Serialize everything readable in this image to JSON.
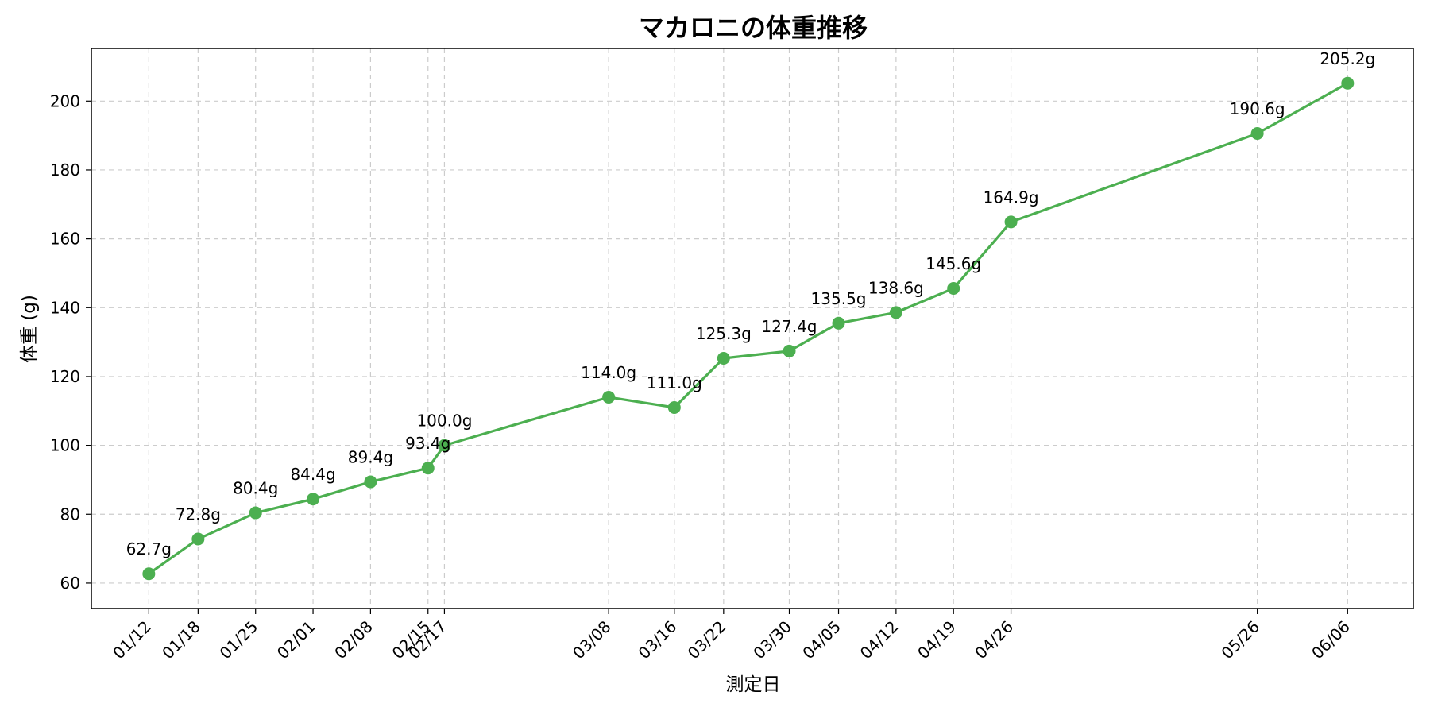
{
  "chart_data": {
    "type": "line",
    "title": "マカロニの体重推移",
    "xlabel": "測定日",
    "ylabel": "体重 (g)",
    "x": [
      "2024-01-12",
      "2024-01-18",
      "2024-01-25",
      "2024-02-01",
      "2024-02-08",
      "2024-02-15",
      "2024-02-17",
      "2024-03-08",
      "2024-03-16",
      "2024-03-22",
      "2024-03-30",
      "2024-04-05",
      "2024-04-12",
      "2024-04-19",
      "2024-04-26",
      "2024-05-26",
      "2024-06-06"
    ],
    "tick_labels": [
      "01/12",
      "01/18",
      "01/25",
      "02/01",
      "02/08",
      "02/15",
      "02/17",
      "03/08",
      "03/16",
      "03/22",
      "03/30",
      "04/05",
      "04/12",
      "04/19",
      "04/26",
      "05/26",
      "06/06"
    ],
    "series": [
      {
        "values": [
          62.7,
          72.8,
          80.4,
          84.4,
          89.4,
          93.4,
          100.0,
          114.0,
          111.0,
          125.3,
          127.4,
          135.5,
          138.6,
          145.6,
          164.9,
          190.6,
          205.2
        ],
        "color": "#4caf50"
      }
    ],
    "data_labels": [
      "62.7g",
      "72.8g",
      "80.4g",
      "84.4g",
      "89.4g",
      "93.4g",
      "100.0g",
      "114.0g",
      "111.0g",
      "125.3g",
      "127.4g",
      "135.5g",
      "138.6g",
      "145.6g",
      "164.9g",
      "190.6g",
      "205.2g"
    ],
    "xlim": [
      "2024-01-05",
      "2024-06-14"
    ],
    "ylim": [
      52.6,
      215.3
    ],
    "yticks": [
      60,
      80,
      100,
      120,
      140,
      160,
      180,
      200
    ],
    "grid": true
  }
}
